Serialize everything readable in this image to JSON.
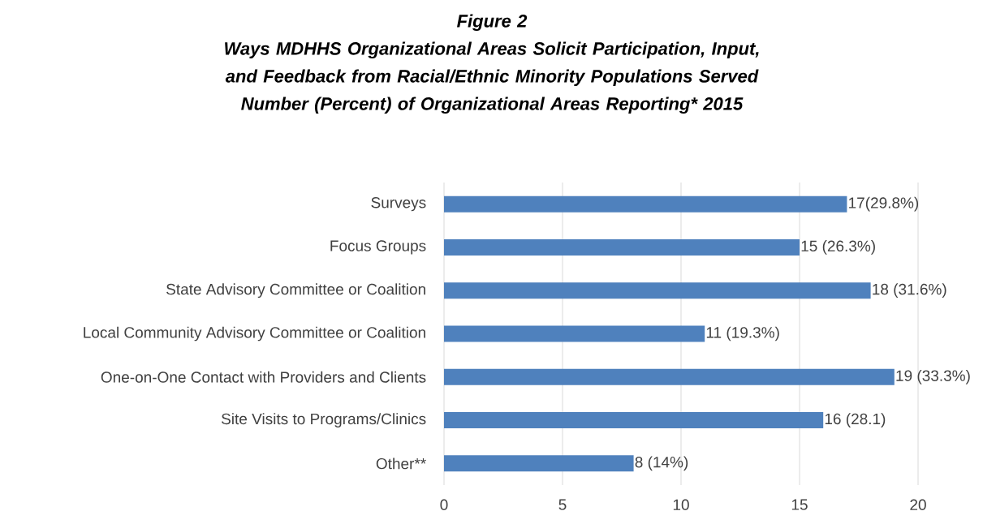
{
  "chart_data": {
    "type": "bar",
    "orientation": "horizontal",
    "title": "Figure 2",
    "subtitle": "Ways MDHHS Organizational Areas Solicit Participation, Input, and Feedback from Racial/Ethnic Minority Populations Served Number (Percent) of Organizational Areas Reporting* 2015",
    "categories": [
      "Surveys",
      "Focus Groups",
      "State Advisory Committee or Coalition",
      "Local Community Advisory Committee or Coalition",
      "One-on-One Contact with Providers and Clients",
      "Site Visits to Programs/Clinics",
      "Other**"
    ],
    "values": [
      17,
      15,
      18,
      11,
      19,
      16,
      8
    ],
    "value_labels": [
      "17(29.8%)",
      "15 (26.3%)",
      "18 (31.6%)",
      "11 (19.3%)",
      "19 (33.3%)",
      "16 (28.1)",
      "8 (14%)"
    ],
    "color": "#4f81bd",
    "xlim": [
      0,
      20
    ],
    "xticks": [
      0,
      5,
      10,
      15,
      20
    ],
    "grid": "x"
  }
}
